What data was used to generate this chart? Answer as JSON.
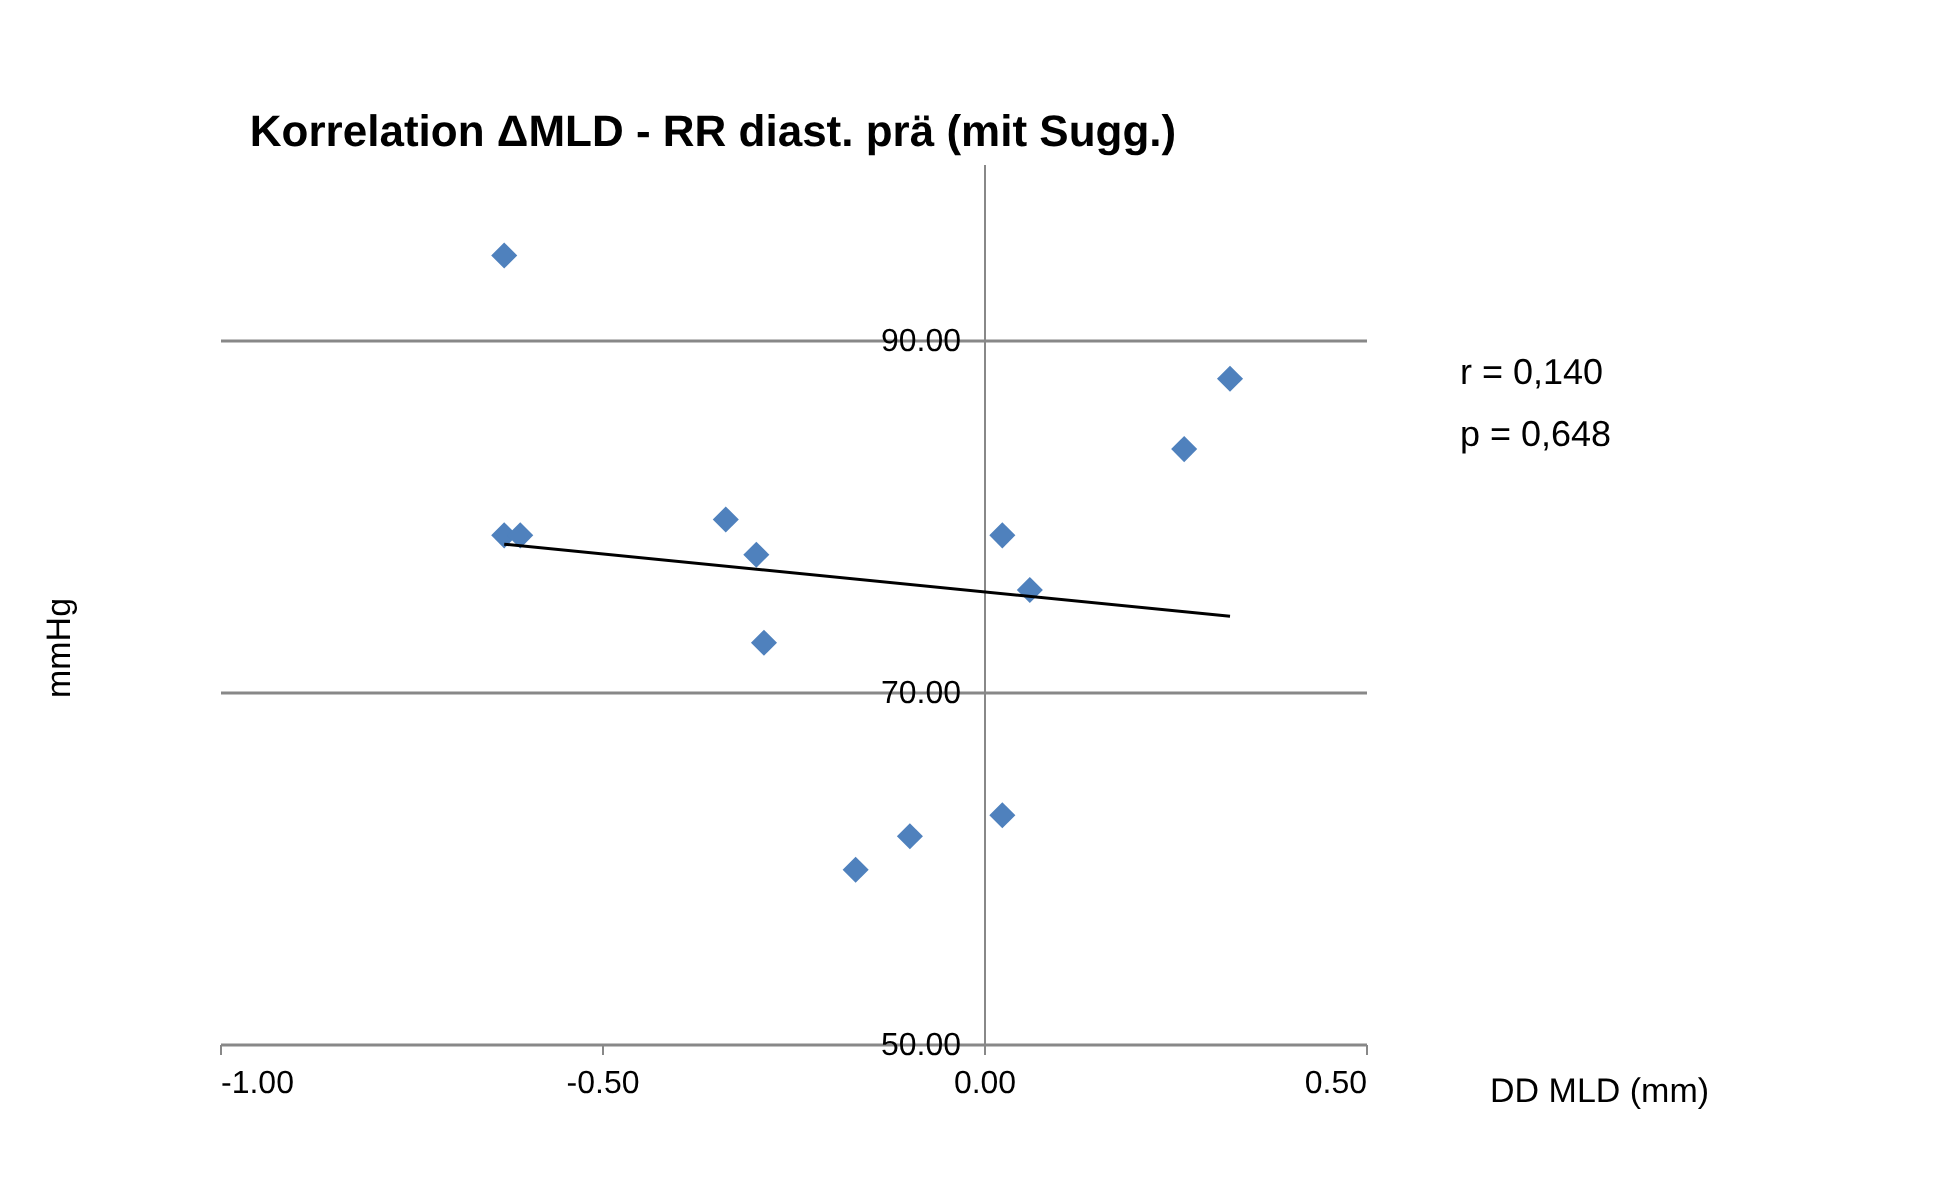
{
  "chart_data": {
    "type": "scatter",
    "title": "Korrelation ΔMLD - RR diast. prä (mit Sugg.)",
    "xlabel": "DD MLD (mm)",
    "ylabel": "mmHg",
    "xlim": [
      -1.0,
      0.5
    ],
    "xticks": [
      {
        "value": -1.0,
        "label": "-1.00"
      },
      {
        "value": -0.5,
        "label": "-0.50"
      },
      {
        "value": 0,
        "label": "0.00"
      },
      {
        "value": 0.5,
        "label": "0.50"
      }
    ],
    "ylim": [
      50,
      100
    ],
    "yticks": [
      {
        "value": 50,
        "label": "50.00"
      },
      {
        "value": 70,
        "label": "70.00"
      },
      {
        "value": 90,
        "label": "90.00"
      }
    ],
    "grid": "y",
    "annotations": [
      "r = 0,140",
      "p = 0,648"
    ],
    "series": [
      {
        "marker": "diamond",
        "color": "#4f81bd",
        "x": [
          -0.628,
          -0.628,
          -0.607,
          -0.338,
          -0.298,
          -0.288,
          -0.168,
          -0.097,
          0.024,
          0.024,
          0.06,
          0.262,
          0.322
        ],
        "values": [
          94.8,
          78.9,
          78.9,
          79.8,
          77.8,
          72.8,
          59.9,
          61.8,
          78.9,
          63.0,
          75.8,
          83.8,
          87.8
        ]
      },
      {
        "type": "line",
        "marker": "none",
        "line_style": "solid",
        "color": "#000000",
        "x": [
          -0.628,
          0.322
        ],
        "values": [
          78.4,
          74.3
        ]
      }
    ]
  }
}
